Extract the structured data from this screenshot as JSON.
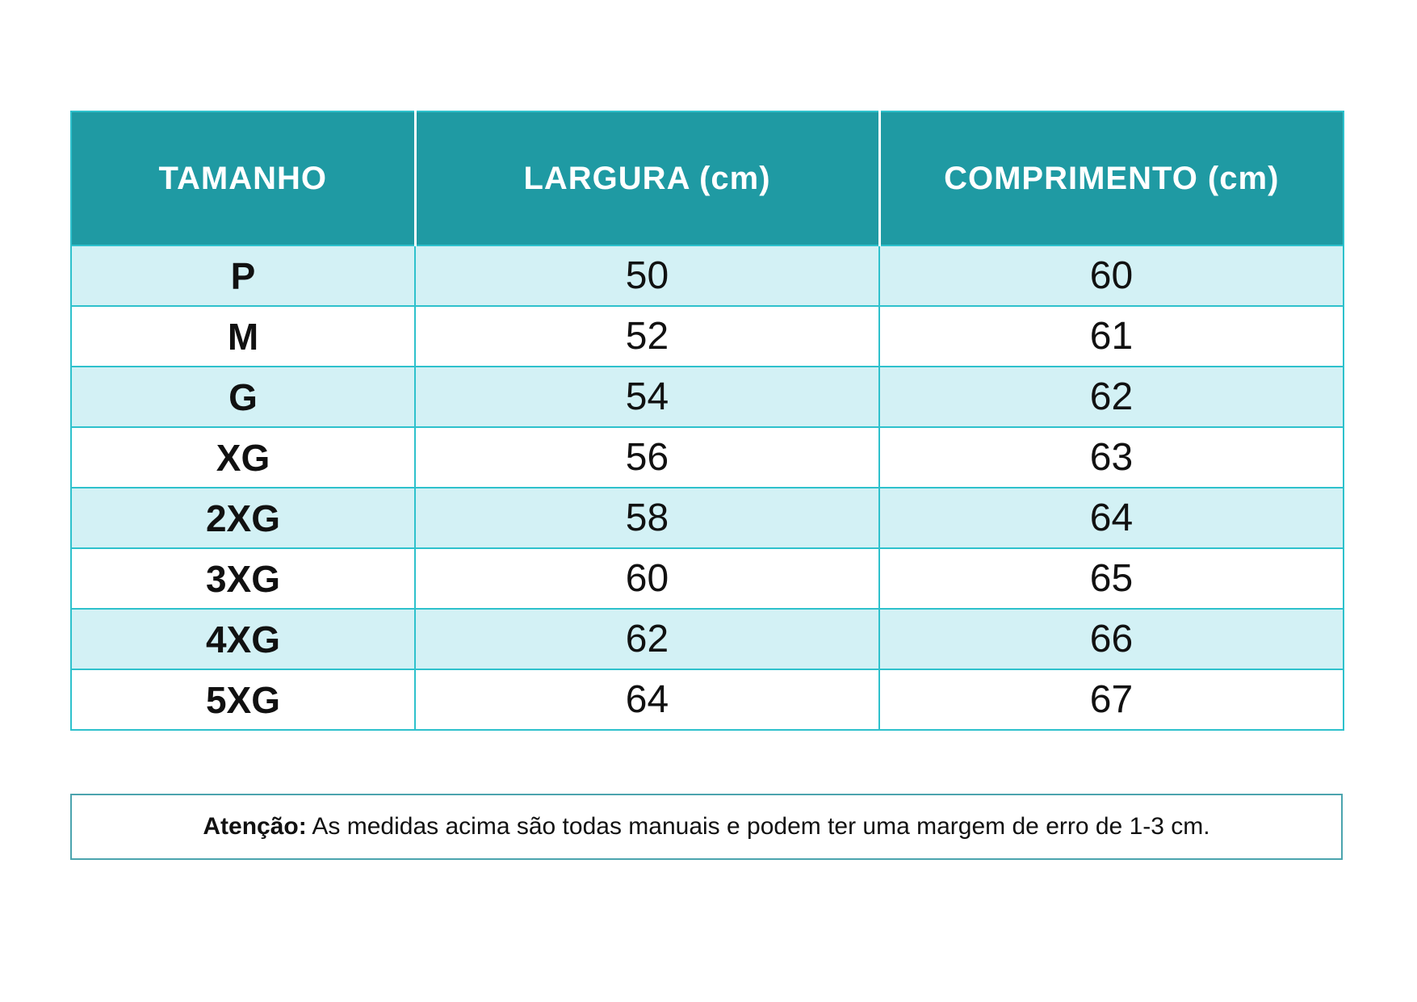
{
  "colors": {
    "header_bg": "#1f9aa3",
    "header_text": "#ffffff",
    "row_alt_bg": "#d3f1f5",
    "row_bg": "#ffffff",
    "grid_border": "#2ec1cc",
    "note_border": "#4ba4ae",
    "text": "#111111"
  },
  "size_chart": {
    "columns": {
      "size": "TAMANHO",
      "largura": "LARGURA (cm)",
      "comprimento": "COMPRIMENTO (cm)"
    },
    "rows": [
      {
        "size": "P",
        "largura": "50",
        "comprimento": "60"
      },
      {
        "size": "M",
        "largura": "52",
        "comprimento": "61"
      },
      {
        "size": "G",
        "largura": "54",
        "comprimento": "62"
      },
      {
        "size": "XG",
        "largura": "56",
        "comprimento": "63"
      },
      {
        "size": "2XG",
        "largura": "58",
        "comprimento": "64"
      },
      {
        "size": "3XG",
        "largura": "60",
        "comprimento": "65"
      },
      {
        "size": "4XG",
        "largura": "62",
        "comprimento": "66"
      },
      {
        "size": "5XG",
        "largura": "64",
        "comprimento": "67"
      }
    ]
  },
  "note": {
    "label": "Atenção:",
    "text": " As medidas acima são todas manuais e podem ter uma margem de erro de 1-3 cm."
  },
  "chart_data": {
    "type": "table",
    "columns": [
      "TAMANHO",
      "LARGURA (cm)",
      "COMPRIMENTO (cm)"
    ],
    "rows": [
      [
        "P",
        50,
        60
      ],
      [
        "M",
        52,
        61
      ],
      [
        "G",
        54,
        62
      ],
      [
        "XG",
        56,
        63
      ],
      [
        "2XG",
        58,
        64
      ],
      [
        "3XG",
        60,
        65
      ],
      [
        "4XG",
        62,
        66
      ],
      [
        "5XG",
        64,
        67
      ]
    ],
    "footnote": "Atenção: As medidas acima são todas manuais e podem ter uma margem de erro de 1-3 cm.",
    "layout_hints": {
      "header_fill": "#1f9aa3",
      "alternating_row_fill": [
        "#d3f1f5",
        "#ffffff"
      ],
      "grid": true
    }
  }
}
